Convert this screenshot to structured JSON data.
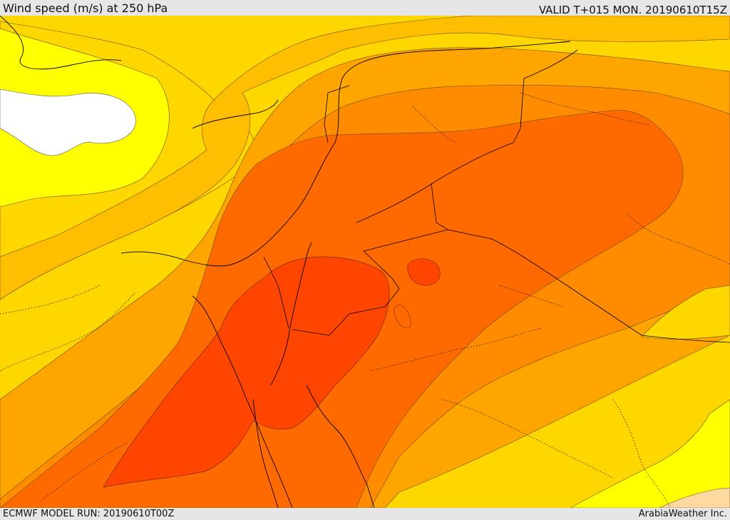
{
  "header": {
    "title": "Wind speed (m/s) at 250 hPa",
    "valid": "VALID T+015 MON. 20190610T15Z"
  },
  "footer": {
    "model_run": "ECMWF MODEL RUN: 20190610T00Z",
    "credit": "ArabiaWeather Inc."
  },
  "map": {
    "field": "wind speed at 250 hPa",
    "colors": {
      "white_zone": "#ffffff",
      "yellow": "#ffff00",
      "gold": "#ffd700",
      "amber": "#ffbf00",
      "orange": "#ffa500",
      "dark_orange": "#ff8c00",
      "orange_red": "#ff6a00",
      "red_orange": "#ff4500",
      "peach": "#ffd9a0",
      "coast": "#000000",
      "contour": "#7a4a1a"
    }
  }
}
